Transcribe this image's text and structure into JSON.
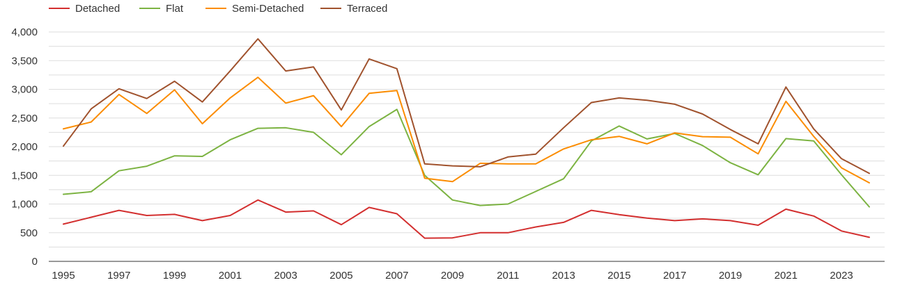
{
  "chart_data": {
    "type": "line",
    "title": "",
    "xlabel": "",
    "ylabel": "",
    "x": [
      1995,
      1996,
      1997,
      1998,
      1999,
      2000,
      2001,
      2002,
      2003,
      2004,
      2005,
      2006,
      2007,
      2008,
      2009,
      2010,
      2011,
      2012,
      2013,
      2014,
      2015,
      2016,
      2017,
      2018,
      2019,
      2020,
      2021,
      2022,
      2023,
      2024
    ],
    "x_tick_labels": [
      "1995",
      "1997",
      "1999",
      "2001",
      "2003",
      "2005",
      "2007",
      "2009",
      "2011",
      "2013",
      "2015",
      "2017",
      "2019",
      "2021",
      "2023"
    ],
    "y_tick_labels": [
      "0",
      "500",
      "1,000",
      "1,500",
      "2,000",
      "2,500",
      "3,000",
      "3,500",
      "4,000"
    ],
    "ylim": [
      0,
      4000
    ],
    "grid": true,
    "legend_position": "top-left",
    "series": [
      {
        "name": "Detached",
        "color": "#d32f2f",
        "values": [
          650,
          770,
          890,
          800,
          820,
          710,
          800,
          1070,
          860,
          880,
          640,
          940,
          830,
          405,
          410,
          500,
          500,
          600,
          680,
          890,
          815,
          755,
          710,
          740,
          710,
          630,
          910,
          790,
          530,
          420
        ]
      },
      {
        "name": "Flat",
        "color": "#7cb342",
        "values": [
          1170,
          1215,
          1580,
          1660,
          1840,
          1830,
          2120,
          2320,
          2330,
          2250,
          1860,
          2350,
          2650,
          1500,
          1070,
          975,
          1000,
          1220,
          1440,
          2100,
          2360,
          2135,
          2230,
          2020,
          1720,
          1510,
          2140,
          2100,
          1510,
          950
        ]
      },
      {
        "name": "Semi-Detached",
        "color": "#fb8c00",
        "values": [
          2310,
          2430,
          2910,
          2580,
          2990,
          2400,
          2850,
          3210,
          2760,
          2890,
          2350,
          2930,
          2980,
          1450,
          1390,
          1710,
          1700,
          1700,
          1960,
          2120,
          2180,
          2050,
          2240,
          2175,
          2165,
          1875,
          2790,
          2180,
          1630,
          1370
        ]
      },
      {
        "name": "Terraced",
        "color": "#a0522d",
        "values": [
          2010,
          2660,
          3010,
          2840,
          3140,
          2780,
          3320,
          3880,
          3320,
          3390,
          2640,
          3530,
          3360,
          1700,
          1665,
          1650,
          1820,
          1870,
          2330,
          2770,
          2850,
          2810,
          2740,
          2570,
          2300,
          2050,
          3040,
          2310,
          1790,
          1535
        ]
      }
    ]
  }
}
